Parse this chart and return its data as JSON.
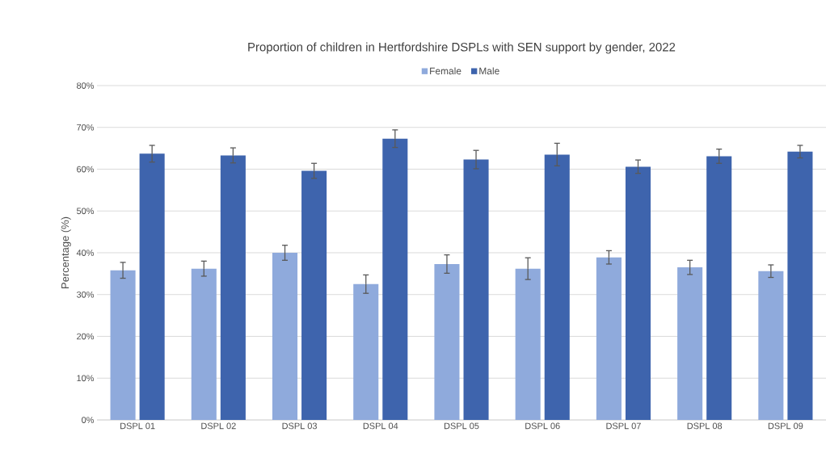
{
  "chart_data": {
    "type": "bar",
    "title": "Proportion of children in Hertfordshire DSPLs with SEN support by gender, 2022",
    "ylabel": "Percentage (%)",
    "categories": [
      "DSPL 01",
      "DSPL 02",
      "DSPL 03",
      "DSPL 04",
      "DSPL 05",
      "DSPL 06",
      "DSPL 07",
      "DSPL 08",
      "DSPL 09"
    ],
    "series": [
      {
        "name": "Female",
        "color": "#8faadc",
        "values": [
          35.8,
          36.2,
          40.0,
          32.5,
          37.3,
          36.2,
          38.9,
          36.5,
          35.6
        ],
        "errors": [
          1.9,
          1.8,
          1.8,
          2.2,
          2.2,
          2.6,
          1.6,
          1.7,
          1.5
        ]
      },
      {
        "name": "Male",
        "color": "#3e64ad",
        "values": [
          63.7,
          63.3,
          59.6,
          67.3,
          62.3,
          63.5,
          60.6,
          63.1,
          64.2
        ],
        "errors": [
          2.0,
          1.8,
          1.8,
          2.1,
          2.2,
          2.7,
          1.6,
          1.7,
          1.5
        ]
      }
    ],
    "ylim": [
      0,
      80
    ],
    "yticks": [
      {
        "value": 0,
        "label": "0%"
      },
      {
        "value": 10,
        "label": "10%"
      },
      {
        "value": 20,
        "label": "20%"
      },
      {
        "value": 30,
        "label": "30%"
      },
      {
        "value": 40,
        "label": "40%"
      },
      {
        "value": 50,
        "label": "50%"
      },
      {
        "value": 60,
        "label": "60%"
      },
      {
        "value": 70,
        "label": "70%"
      },
      {
        "value": 80,
        "label": "80%"
      }
    ],
    "grid": "y",
    "legend": "top"
  }
}
